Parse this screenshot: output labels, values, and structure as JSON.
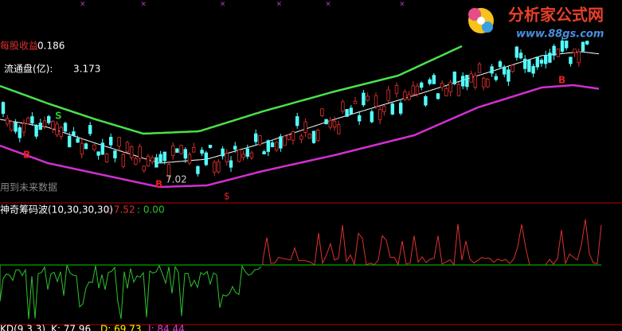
{
  "header": {
    "eps_label": "每股收益",
    "eps_value": "0.186",
    "float_label": "流通盘(亿):",
    "float_value": "3.173"
  },
  "signals": {
    "s": "S",
    "b1": "B",
    "b2": "B",
    "low_price": "7.02",
    "warning": "用到未来数据",
    "dollar": "$"
  },
  "indicator": {
    "name": "神奇筹码波(10,30,30,30)",
    "value1": ": 7.52",
    "value2": ": 0.00"
  },
  "footer": {
    "kdj": "KD(9,3,3)",
    "k": "K: 77.96",
    "d": "D: 69.73",
    "j": "J: 84.44"
  },
  "logo": {
    "title": "分析家公式网",
    "url": "www.88gs.com"
  }
}
